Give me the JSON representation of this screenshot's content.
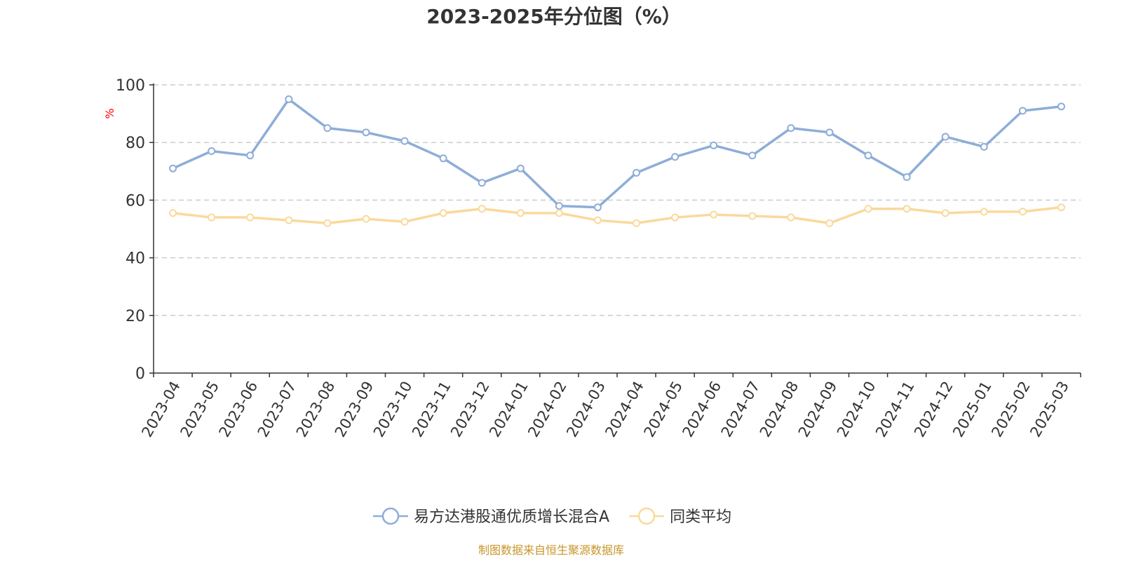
{
  "chart_data": {
    "type": "line",
    "title": "2023-2025年分位图（%）",
    "ylabel": "%",
    "ylim": [
      0,
      100
    ],
    "yticks": [
      0,
      20,
      40,
      60,
      80,
      100
    ],
    "grid": true,
    "legend_position": "bottom",
    "categories": [
      "2023-04",
      "2023-05",
      "2023-06",
      "2023-07",
      "2023-08",
      "2023-09",
      "2023-10",
      "2023-11",
      "2023-12",
      "2024-01",
      "2024-02",
      "2024-03",
      "2024-04",
      "2024-05",
      "2024-06",
      "2024-07",
      "2024-08",
      "2024-09",
      "2024-10",
      "2024-11",
      "2024-12",
      "2025-01",
      "2025-02",
      "2025-03"
    ],
    "series": [
      {
        "name": "易方达港股通优质增长混合A",
        "color": "#8eadd8",
        "values": [
          71.0,
          77.0,
          75.5,
          95.0,
          85.0,
          83.5,
          80.5,
          74.5,
          66.0,
          71.0,
          58.0,
          57.5,
          69.5,
          75.0,
          79.0,
          75.5,
          85.0,
          83.5,
          75.5,
          68.0,
          82.0,
          78.5,
          91.0,
          92.5
        ]
      },
      {
        "name": "同类平均",
        "color": "#fad99c",
        "values": [
          55.5,
          54.0,
          54.0,
          53.0,
          52.0,
          53.5,
          52.5,
          55.5,
          57.0,
          55.5,
          55.5,
          53.0,
          52.0,
          54.0,
          55.0,
          54.5,
          54.0,
          52.0,
          57.0,
          57.0,
          55.5,
          56.0,
          56.0,
          57.5
        ]
      }
    ]
  },
  "source": "制图数据来自恒生聚源数据库",
  "colors": {
    "axis": "#333333",
    "grid": "#cccccc",
    "unit": "#ff0000",
    "source": "#c8962a"
  }
}
